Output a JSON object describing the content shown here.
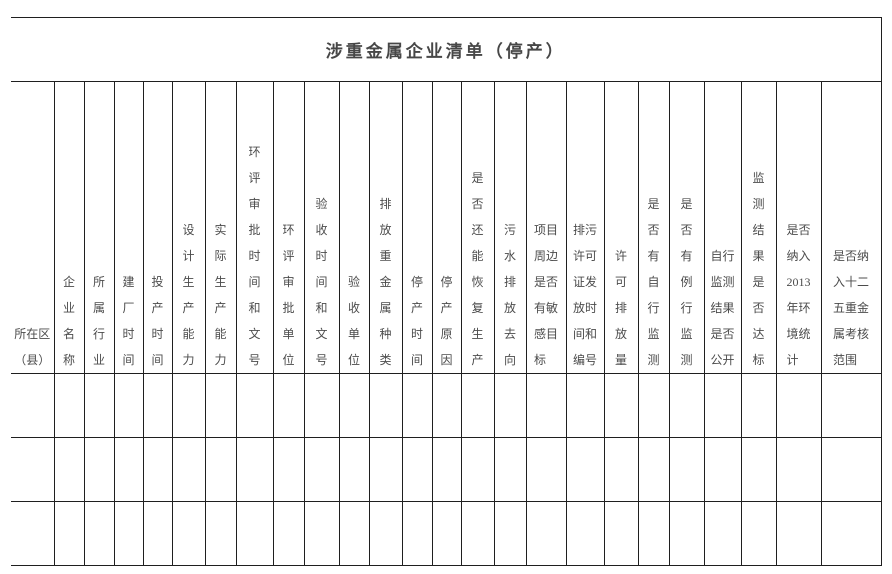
{
  "title": "涉重金属企业清单（停产）",
  "colors": {
    "background": "#ffffff",
    "border": "#1f1f1f",
    "header_text": "#4c4c4c",
    "title_text": "#474747"
  },
  "table": {
    "columns": [
      {
        "label": "所在区\n（县）"
      },
      {
        "label": "企\n业\n名\n称"
      },
      {
        "label": "所\n属\n行\n业"
      },
      {
        "label": "建\n厂\n时\n间"
      },
      {
        "label": "投\n产\n时\n间"
      },
      {
        "label": "设\n计\n生\n产\n能\n力"
      },
      {
        "label": "实\n际\n生\n产\n能\n力"
      },
      {
        "label": "环\n评\n审\n批\n时\n间\n和\n文\n号"
      },
      {
        "label": "环\n评\n审\n批\n单\n位"
      },
      {
        "label": "验\n收\n时\n间\n和\n文\n号"
      },
      {
        "label": "验\n收\n单\n位"
      },
      {
        "label": "排\n放\n重\n金\n属\n种\n类"
      },
      {
        "label": "停\n产\n时\n间"
      },
      {
        "label": "停\n产\n原\n因"
      },
      {
        "label": "是\n否\n还\n能\n恢\n复\n生\n产"
      },
      {
        "label": "污\n水\n排\n放\n去\n向"
      },
      {
        "label": "项目\n周边\n是否\n有敏\n感目\n标"
      },
      {
        "label": "排污\n许可\n证发\n放时\n间和\n编号"
      },
      {
        "label": "许\n可\n排\n放\n量"
      },
      {
        "label": "是\n否\n有\n自\n行\n监\n测"
      },
      {
        "label": "是\n否\n有\n例\n行\n监\n测"
      },
      {
        "label": "自行\n监测\n结果\n是否\n公开"
      },
      {
        "label": "监\n测\n结\n果\n是\n否\n达\n标"
      },
      {
        "label": "是否\n纳入\n2013\n年环\n境统\n计"
      },
      {
        "label": "是否纳\n入十二\n五重金\n属考核\n范围"
      }
    ],
    "empty_row_count": 3,
    "rows": [
      [],
      [],
      []
    ]
  }
}
